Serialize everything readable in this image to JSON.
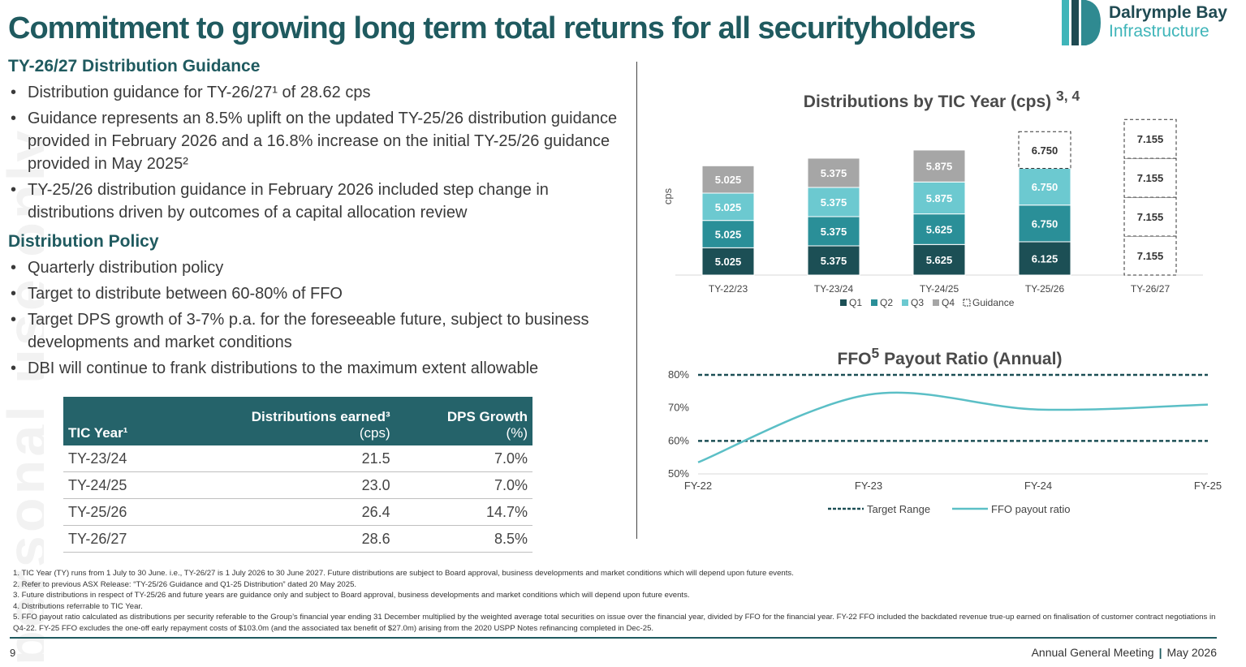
{
  "watermark": "personal use only",
  "title": "Commitment to growing long term total returns for all securityholders",
  "logo": {
    "line1": "Dalrymple Bay",
    "line2": "Infrastructure",
    "colors": [
      "#1f4a52",
      "#3fb5b9"
    ]
  },
  "guidance": {
    "heading": "TY-26/27 Distribution Guidance",
    "bullets": [
      "Distribution guidance for TY-26/27¹ of 28.62 cps",
      "Guidance represents an 8.5% uplift on the updated TY-25/26 distribution guidance provided in February 2026 and a 16.8% increase on the initial TY-25/26 guidance provided in May 2025²",
      "TY-25/26 distribution guidance in February 2026 included step change in distributions driven by outcomes of a capital allocation review"
    ]
  },
  "policy": {
    "heading": "Distribution Policy",
    "bullets": [
      "Quarterly distribution policy",
      "Target to distribute between 60-80% of FFO",
      "Target DPS growth of 3-7% p.a. for the foreseeable future, subject to business developments and market conditions",
      "DBI will continue to frank distributions to the maximum extent allowable"
    ]
  },
  "table": {
    "headers": {
      "year": "TIC Year¹",
      "dist": "Distributions earned³",
      "dist_unit": "(cps)",
      "growth": "DPS Growth",
      "growth_unit": "(%)"
    },
    "rows": [
      {
        "year": "TY-23/24",
        "dist": "21.5",
        "growth": "7.0%"
      },
      {
        "year": "TY-24/25",
        "dist": "23.0",
        "growth": "7.0%"
      },
      {
        "year": "TY-25/26",
        "dist": "26.4",
        "growth": "14.7%"
      },
      {
        "year": "TY-26/27",
        "dist": "28.6",
        "growth": "8.5%"
      }
    ]
  },
  "chart_data": [
    {
      "type": "bar",
      "stacked": true,
      "title": "Distributions by TIC Year (cps)",
      "title_sup": "3, 4",
      "ylabel": "cps",
      "categories": [
        "TY-22/23",
        "TY-23/24",
        "TY-24/25",
        "TY-25/26",
        "TY-26/27"
      ],
      "series": [
        {
          "name": "Q1",
          "color": "#1c4f55",
          "values": [
            5.025,
            5.375,
            5.625,
            6.125,
            null
          ]
        },
        {
          "name": "Q2",
          "color": "#2a8f98",
          "values": [
            5.025,
            5.375,
            5.625,
            6.75,
            null
          ]
        },
        {
          "name": "Q3",
          "color": "#6cc9d0",
          "values": [
            5.025,
            5.375,
            5.875,
            6.75,
            null
          ]
        },
        {
          "name": "Q4",
          "color": "#a6a6a6",
          "values": [
            5.025,
            5.375,
            5.875,
            null,
            null
          ]
        },
        {
          "name": "Guidance",
          "style": "dashed-outline",
          "values": [
            null,
            null,
            null,
            6.75,
            [
              7.155,
              7.155,
              7.155,
              7.155
            ]
          ]
        }
      ],
      "data_labels": true,
      "legend": "bottom",
      "grid": false
    },
    {
      "type": "line",
      "title": "FFO",
      "title_sup": "5",
      "title_suffix": "Payout Ratio (Annual)",
      "x": [
        "FY-22",
        "FY-23",
        "FY-24",
        "FY-25"
      ],
      "ylim": [
        50,
        80
      ],
      "yticks": [
        "50%",
        "60%",
        "70%",
        "80%"
      ],
      "series": [
        {
          "name": "Target Range",
          "style": "dashed",
          "color": "#1c4f55",
          "values_upper": [
            80,
            80,
            80,
            80
          ],
          "values_lower": [
            60,
            60,
            60,
            60
          ]
        },
        {
          "name": "FFO payout ratio",
          "style": "solid",
          "color": "#5bbfc6",
          "values": [
            53.5,
            74,
            69.5,
            71
          ]
        }
      ],
      "legend": "bottom",
      "grid": false
    }
  ],
  "footnotes": [
    "1. TIC Year (TY) runs from 1 July to 30 June. i.e., TY-26/27 is 1 July 2026 to 30 June 2027. Future distributions are subject to Board approval, business developments and market conditions which will depend upon future events.",
    "2. Refer to previous ASX Release: “TY-25/26 Guidance and Q1-25 Distribution” dated 20 May 2025.",
    "3. Future distributions in respect of TY-25/26 and future years are guidance only and subject to Board approval, business developments and market conditions which will depend upon future events.",
    "4. Distributions referrable to TIC Year.",
    "5. FFO payout ratio calculated as distributions per security referable to the Group’s financial year ending 31 December multiplied by the weighted average total securities on issue over the financial year, divided by FFO for the financial year. FY-22 FFO included the backdated revenue true-up earned on finalisation of customer contract negotiations in Q4-22. FY-25 FFO excludes the one-off early repayment costs of $103.0m (and the associated tax benefit of $27.0m) arising from the 2020 USPP Notes refinancing completed in Dec-25."
  ],
  "footer": {
    "page": "9",
    "event": "Annual General Meeting",
    "date": "May 2026"
  }
}
